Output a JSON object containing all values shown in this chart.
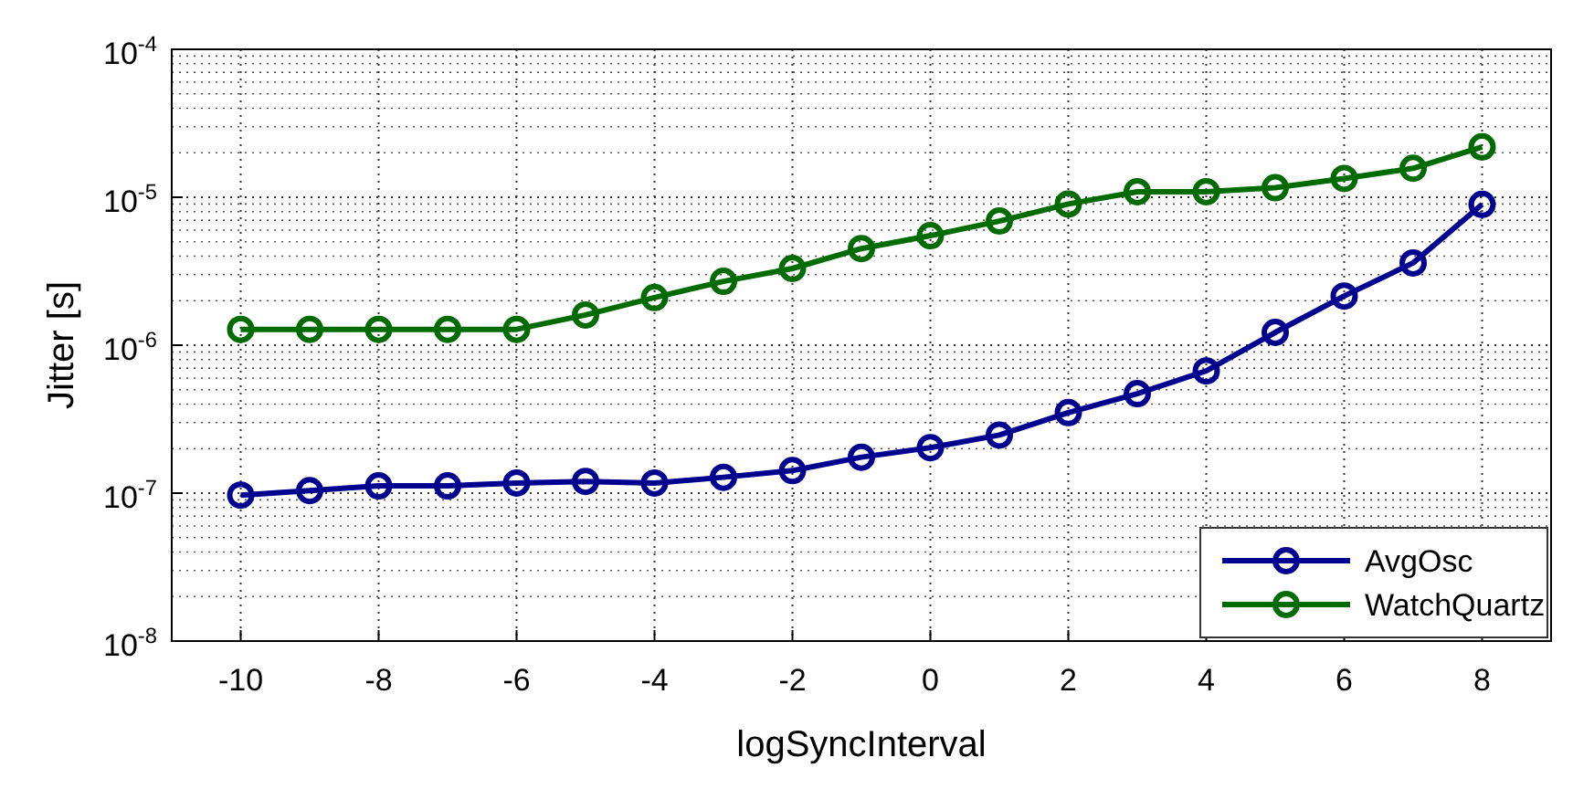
{
  "chart_data": {
    "type": "line",
    "xlabel": "logSyncInterval",
    "ylabel": "Jitter [s]",
    "x": [
      -10,
      -9,
      -8,
      -7,
      -6,
      -5,
      -4,
      -3,
      -2,
      -1,
      0,
      1,
      2,
      3,
      4,
      5,
      6,
      7,
      8
    ],
    "series": [
      {
        "name": "AvgOsc",
        "color": "#00008f",
        "values": [
          9.7e-08,
          1.04e-07,
          1.12e-07,
          1.12e-07,
          1.17e-07,
          1.2e-07,
          1.17e-07,
          1.28e-07,
          1.42e-07,
          1.75e-07,
          2.03e-07,
          2.47e-07,
          3.5e-07,
          4.7e-07,
          6.7e-07,
          1.22e-06,
          2.15e-06,
          3.6e-06,
          8.95e-06
        ]
      },
      {
        "name": "WatchQuartz",
        "color": "#006b00",
        "values": [
          1.28e-06,
          1.28e-06,
          1.28e-06,
          1.28e-06,
          1.28e-06,
          1.6e-06,
          2.1e-06,
          2.7e-06,
          3.3e-06,
          4.5e-06,
          5.5e-06,
          6.9e-06,
          9e-06,
          1.09e-05,
          1.09e-05,
          1.16e-05,
          1.34e-05,
          1.57e-05,
          2.19e-05
        ]
      }
    ],
    "xlim": [
      -11,
      9
    ],
    "xticks": [
      -10,
      -8,
      -6,
      -4,
      -2,
      0,
      2,
      4,
      6,
      8
    ],
    "ylim": [
      1e-08,
      0.0001
    ],
    "yticks": [
      {
        "value": 1e-08,
        "label": "10$^{-8}$"
      },
      {
        "value": 1e-07,
        "label": "10$^{-7}$"
      },
      {
        "value": 1e-06,
        "label": "10$^{-6}$"
      },
      {
        "value": 1e-05,
        "label": "10$^{-5}$"
      },
      {
        "value": 0.0001,
        "label": "10$^{-4}$"
      }
    ],
    "log": "y",
    "grid": true,
    "legend": "bottom right",
    "marker": "circle",
    "line_style": "solid"
  }
}
